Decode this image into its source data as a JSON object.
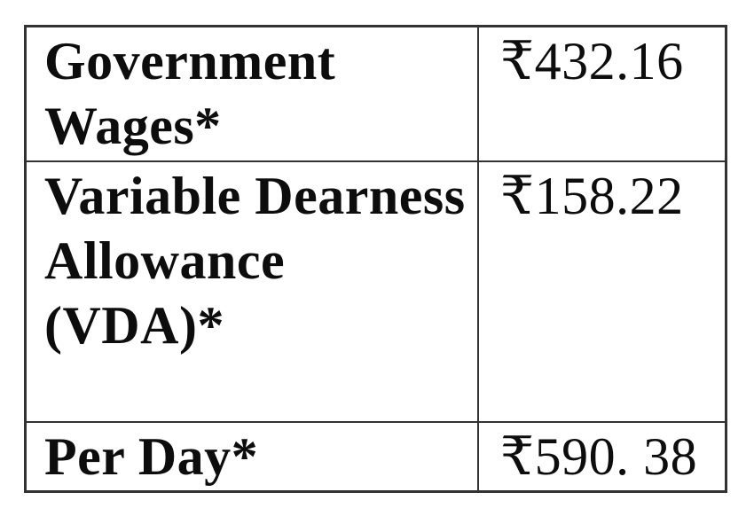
{
  "table": {
    "rows": [
      {
        "label": "Government Wages*",
        "value": "₹432.16"
      },
      {
        "label": "Variable Dearness Allowance (VDA)*",
        "value": "₹158.22"
      },
      {
        "label": "Per Day*",
        "value": "₹590. 38"
      }
    ]
  },
  "colors": {
    "border": "#333333",
    "text": "#0d0d0d",
    "background": "#ffffff"
  }
}
